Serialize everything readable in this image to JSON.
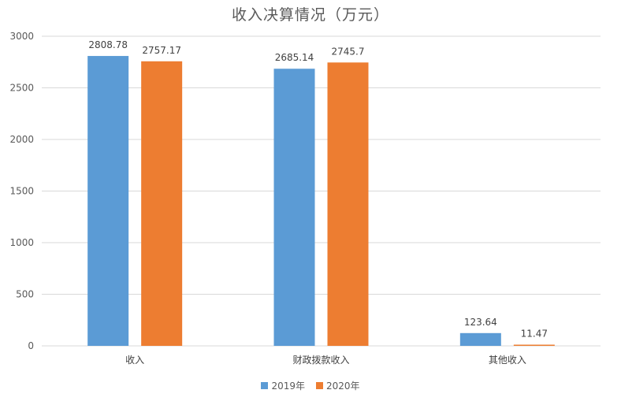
{
  "chart_data": {
    "type": "bar",
    "title": "收入决算情况（万元）",
    "categories": [
      "收入",
      "财政拨款收入",
      "其他收入"
    ],
    "series": [
      {
        "name": "2019年",
        "color": "#5b9bd5",
        "values": [
          2808.78,
          2685.14,
          123.64
        ],
        "labels": [
          "2808.78",
          "2685.14",
          "123.64"
        ]
      },
      {
        "name": "2020年",
        "color": "#ed7d31",
        "values": [
          2757.17,
          2745.7,
          11.47
        ],
        "labels": [
          "2757.17",
          "2745.7",
          "11.47"
        ]
      }
    ],
    "ylim": [
      0,
      3000
    ],
    "yticks": [
      0,
      500,
      1000,
      1500,
      2000,
      2500,
      3000
    ],
    "grid": true,
    "legend": "bottom"
  }
}
